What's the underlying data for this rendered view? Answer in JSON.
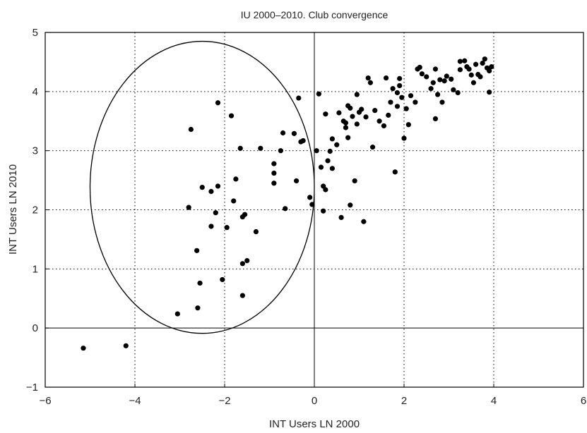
{
  "chart_data": {
    "type": "scatter",
    "title": "IU 2000–2010. Club convergence",
    "xlabel": "INT Users LN 2000",
    "ylabel": "INT Users LN 2010",
    "xlim": [
      -6,
      6
    ],
    "ylim": [
      -1,
      5
    ],
    "x_ticks": [
      -6,
      -4,
      -2,
      0,
      2,
      4,
      6
    ],
    "y_ticks": [
      -1,
      0,
      1,
      2,
      3,
      4,
      5
    ],
    "grid": true,
    "grid_style": "dotted",
    "reference_lines": {
      "x": 0,
      "y": 0
    },
    "point_color": "#000000",
    "annotation": {
      "shape": "ellipse",
      "center": [
        -2.5,
        2.38
      ],
      "radius_x": 2.5,
      "radius_y": 2.47
    },
    "points": [
      [
        -5.15,
        -0.34
      ],
      [
        -4.2,
        -0.3
      ],
      [
        -3.05,
        0.24
      ],
      [
        -2.6,
        0.34
      ],
      [
        -2.55,
        0.76
      ],
      [
        -2.62,
        1.31
      ],
      [
        -2.8,
        2.04
      ],
      [
        -2.75,
        3.36
      ],
      [
        -2.5,
        2.38
      ],
      [
        -2.3,
        2.31
      ],
      [
        -2.3,
        1.72
      ],
      [
        -2.2,
        1.95
      ],
      [
        -2.15,
        2.4
      ],
      [
        -2.15,
        3.81
      ],
      [
        -2.05,
        0.82
      ],
      [
        -1.95,
        1.7
      ],
      [
        -1.85,
        3.59
      ],
      [
        -1.8,
        2.15
      ],
      [
        -1.75,
        2.52
      ],
      [
        -1.65,
        3.04
      ],
      [
        -1.6,
        1.09
      ],
      [
        -1.6,
        0.55
      ],
      [
        -1.6,
        1.88
      ],
      [
        -1.55,
        1.92
      ],
      [
        -1.5,
        1.14
      ],
      [
        -1.2,
        3.04
      ],
      [
        -1.3,
        1.63
      ],
      [
        -0.9,
        2.78
      ],
      [
        -0.9,
        2.62
      ],
      [
        -0.9,
        2.45
      ],
      [
        -0.7,
        3.3
      ],
      [
        -0.75,
        3.0
      ],
      [
        -0.65,
        2.02
      ],
      [
        -0.45,
        3.29
      ],
      [
        -0.4,
        2.49
      ],
      [
        -0.35,
        3.89
      ],
      [
        -0.3,
        3.15
      ],
      [
        -0.25,
        3.17
      ],
      [
        -0.1,
        2.21
      ],
      [
        -0.05,
        2.09
      ],
      [
        0.05,
        3.0
      ],
      [
        0.1,
        3.96
      ],
      [
        0.15,
        2.72
      ],
      [
        0.2,
        2.4
      ],
      [
        0.25,
        2.34
      ],
      [
        0.2,
        1.98
      ],
      [
        0.25,
        3.62
      ],
      [
        0.3,
        2.83
      ],
      [
        0.35,
        2.99
      ],
      [
        0.4,
        3.2
      ],
      [
        0.4,
        2.7
      ],
      [
        0.6,
        1.87
      ],
      [
        0.65,
        3.5
      ],
      [
        0.7,
        3.39
      ],
      [
        0.7,
        3.47
      ],
      [
        0.75,
        3.76
      ],
      [
        0.85,
        3.58
      ],
      [
        0.75,
        3.22
      ],
      [
        0.8,
        2.08
      ],
      [
        0.9,
        2.49
      ],
      [
        0.95,
        3.95
      ],
      [
        1.0,
        3.65
      ],
      [
        1.05,
        3.7
      ],
      [
        1.1,
        1.8
      ],
      [
        1.15,
        3.57
      ],
      [
        1.2,
        4.23
      ],
      [
        1.25,
        4.15
      ],
      [
        1.3,
        3.06
      ],
      [
        1.35,
        3.68
      ],
      [
        1.45,
        3.5
      ],
      [
        1.6,
        4.23
      ],
      [
        1.65,
        3.6
      ],
      [
        1.7,
        3.82
      ],
      [
        1.8,
        2.64
      ],
      [
        1.85,
        3.98
      ],
      [
        1.9,
        4.1
      ],
      [
        1.9,
        4.22
      ],
      [
        1.95,
        3.9
      ],
      [
        2.0,
        3.21
      ],
      [
        2.05,
        3.71
      ],
      [
        2.1,
        3.44
      ],
      [
        2.15,
        3.93
      ],
      [
        2.3,
        4.38
      ],
      [
        2.35,
        4.41
      ],
      [
        2.6,
        4.05
      ],
      [
        2.65,
        4.15
      ],
      [
        2.7,
        3.54
      ],
      [
        2.7,
        4.38
      ],
      [
        2.75,
        3.95
      ],
      [
        2.8,
        4.2
      ],
      [
        2.85,
        3.82
      ],
      [
        2.95,
        4.26
      ],
      [
        3.05,
        4.21
      ],
      [
        3.1,
        4.03
      ],
      [
        3.2,
        3.98
      ],
      [
        3.25,
        4.37
      ],
      [
        3.25,
        4.51
      ],
      [
        3.35,
        4.52
      ],
      [
        3.4,
        4.42
      ],
      [
        3.45,
        4.38
      ],
      [
        3.5,
        4.28
      ],
      [
        3.55,
        4.15
      ],
      [
        3.6,
        4.46
      ],
      [
        3.65,
        4.29
      ],
      [
        3.7,
        4.25
      ],
      [
        3.75,
        4.48
      ],
      [
        3.8,
        4.55
      ],
      [
        3.85,
        4.4
      ],
      [
        3.9,
        4.35
      ],
      [
        3.9,
        3.99
      ],
      [
        3.95,
        4.42
      ],
      [
        1.55,
        3.42
      ],
      [
        2.25,
        3.82
      ],
      [
        0.55,
        3.64
      ],
      [
        0.95,
        3.45
      ],
      [
        1.85,
        3.75
      ],
      [
        2.5,
        4.25
      ],
      [
        0.8,
        3.72
      ],
      [
        2.9,
        4.18
      ],
      [
        0.5,
        3.1
      ],
      [
        1.75,
        4.05
      ],
      [
        2.4,
        4.3
      ]
    ]
  }
}
